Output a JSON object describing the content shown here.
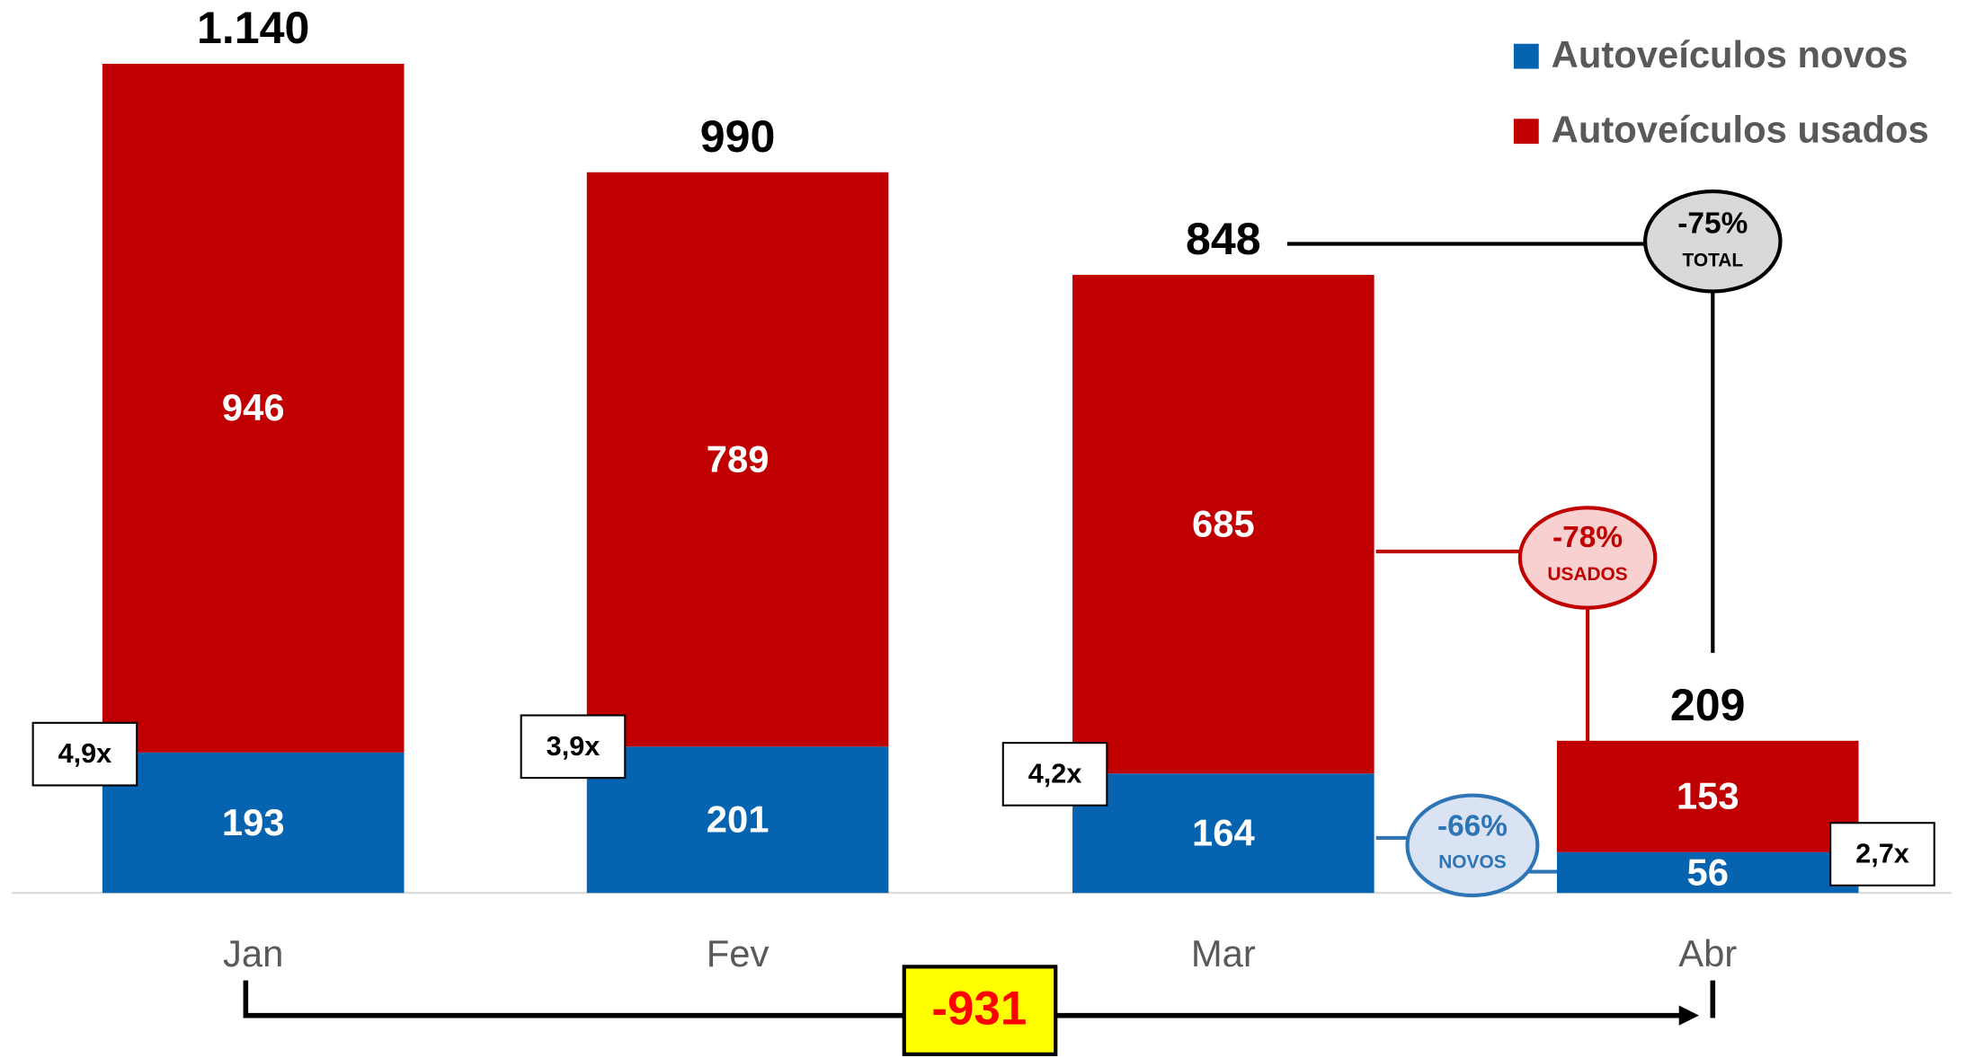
{
  "chart_data": {
    "type": "stacked-bar",
    "categories": [
      "Jan",
      "Fev",
      "Mar",
      "Abr"
    ],
    "series": [
      {
        "name": "Autoveículos novos",
        "color": "#0563b0",
        "values": [
          193,
          201,
          164,
          56
        ]
      },
      {
        "name": "Autoveículos usados",
        "color": "#c00000",
        "values": [
          946,
          789,
          685,
          153
        ]
      }
    ],
    "totals": {
      "values": [
        1140,
        990,
        848,
        209
      ],
      "value_labels": [
        "1.140",
        "990",
        "848",
        "209"
      ]
    },
    "ratios": [
      "4,9x",
      "3,9x",
      "4,2x",
      "2,7x"
    ],
    "annotations": [
      {
        "text": "-75%",
        "sub": "TOTAL"
      },
      {
        "text": "-78%",
        "sub": "USADOS"
      },
      {
        "text": "-66%",
        "sub": "NOVOS"
      }
    ],
    "difference": "-931",
    "legend": "top-right"
  }
}
